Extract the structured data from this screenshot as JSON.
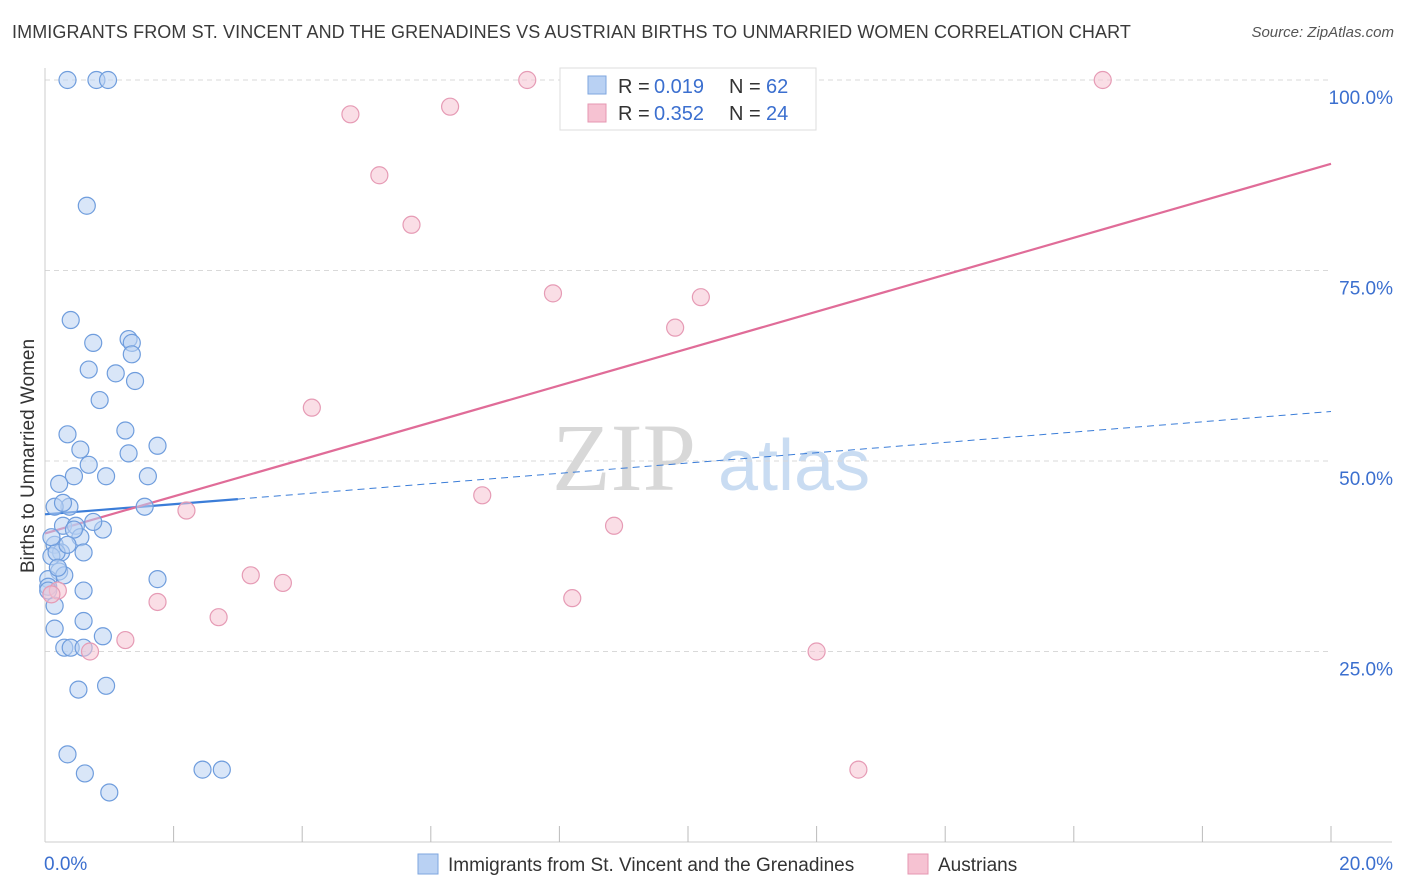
{
  "title": "IMMIGRANTS FROM ST. VINCENT AND THE GRENADINES VS AUSTRIAN BIRTHS TO UNMARRIED WOMEN CORRELATION CHART",
  "source": "Source: ZipAtlas.com",
  "colors": {
    "blue": "#3b7dd8",
    "blue_fill": "#b9d1f3",
    "pink": "#e06c98",
    "pink_fill": "#f6c2d2",
    "grid": "#d9d9d9",
    "accent_text": "#3b6fcf"
  },
  "watermark": {
    "zip": "ZIP",
    "atlas": "atlas"
  },
  "stats": {
    "rows": [
      {
        "r_label": "R = ",
        "r_value": "0.019",
        "n_label": "N = ",
        "n_value": "62",
        "series": "blue"
      },
      {
        "r_label": "R = ",
        "r_value": "0.352",
        "n_label": "N = ",
        "n_value": "24",
        "series": "pink"
      }
    ]
  },
  "chart_data": {
    "type": "scatter",
    "xlabel": "",
    "ylabel": "Births to Unmarried Women",
    "xlim": [
      0,
      20
    ],
    "ylim": [
      0,
      100
    ],
    "x_tick_labels": [
      {
        "value": 0,
        "label": "0.0%"
      },
      {
        "value": 20,
        "label": "20.0%"
      }
    ],
    "y_tick_labels": [
      {
        "value": 25,
        "label": "25.0%"
      },
      {
        "value": 50,
        "label": "50.0%"
      },
      {
        "value": 75,
        "label": "75.0%"
      },
      {
        "value": 100,
        "label": "100.0%"
      }
    ],
    "y_gridlines": [
      25,
      50,
      75,
      100
    ],
    "x_minor_ticks": [
      2,
      4,
      6,
      8,
      10,
      12,
      14,
      16,
      18,
      20
    ],
    "legend": [
      {
        "name": "Immigrants from St. Vincent and the Grenadines",
        "series": "blue"
      },
      {
        "name": "Austrians",
        "series": "pink"
      }
    ],
    "series": [
      {
        "name": "Immigrants from St. Vincent and the Grenadines",
        "color": "blue",
        "points": [
          [
            0.35,
            100
          ],
          [
            0.8,
            100
          ],
          [
            0.98,
            100
          ],
          [
            0.65,
            83.5
          ],
          [
            0.4,
            68.5
          ],
          [
            0.75,
            65.5
          ],
          [
            1.3,
            66
          ],
          [
            1.35,
            65.5
          ],
          [
            1.35,
            64
          ],
          [
            0.68,
            62
          ],
          [
            1.1,
            61.5
          ],
          [
            1.4,
            60.5
          ],
          [
            0.85,
            58
          ],
          [
            1.25,
            54
          ],
          [
            0.35,
            53.5
          ],
          [
            0.55,
            51.5
          ],
          [
            1.3,
            51
          ],
          [
            1.75,
            52
          ],
          [
            0.68,
            49.5
          ],
          [
            0.45,
            48
          ],
          [
            0.95,
            48
          ],
          [
            1.6,
            48
          ],
          [
            0.22,
            47
          ],
          [
            0.38,
            44
          ],
          [
            0.15,
            44
          ],
          [
            1.55,
            44
          ],
          [
            0.28,
            41.5
          ],
          [
            0.48,
            41.5
          ],
          [
            0.9,
            41
          ],
          [
            0.55,
            40
          ],
          [
            0.45,
            41
          ],
          [
            0.15,
            39
          ],
          [
            0.25,
            38
          ],
          [
            0.1,
            37.5
          ],
          [
            0.18,
            38
          ],
          [
            0.22,
            35.5
          ],
          [
            0.3,
            35
          ],
          [
            0.05,
            34.5
          ],
          [
            0.05,
            33.5
          ],
          [
            0.05,
            33
          ],
          [
            0.6,
            33
          ],
          [
            1.75,
            34.5
          ],
          [
            0.15,
            31
          ],
          [
            0.6,
            29
          ],
          [
            0.15,
            28
          ],
          [
            0.9,
            27
          ],
          [
            0.3,
            25.5
          ],
          [
            0.4,
            25.5
          ],
          [
            0.6,
            25.5
          ],
          [
            0.95,
            20.5
          ],
          [
            0.52,
            20
          ],
          [
            0.35,
            11.5
          ],
          [
            0.62,
            9
          ],
          [
            2.45,
            9.5
          ],
          [
            2.75,
            9.5
          ],
          [
            1.0,
            6.5
          ],
          [
            0.2,
            36
          ],
          [
            0.35,
            39
          ],
          [
            0.75,
            42
          ],
          [
            0.1,
            40
          ],
          [
            0.6,
            38
          ],
          [
            0.28,
            44.5
          ]
        ]
      },
      {
        "name": "Austrians",
        "color": "pink",
        "points": [
          [
            7.5,
            100
          ],
          [
            16.45,
            100
          ],
          [
            6.3,
            96.5
          ],
          [
            4.75,
            95.5
          ],
          [
            5.2,
            87.5
          ],
          [
            5.7,
            81
          ],
          [
            7.9,
            72
          ],
          [
            10.2,
            71.5
          ],
          [
            9.8,
            67.5
          ],
          [
            4.15,
            57
          ],
          [
            6.8,
            45.5
          ],
          [
            2.2,
            43.5
          ],
          [
            8.85,
            41.5
          ],
          [
            3.2,
            35
          ],
          [
            3.7,
            34
          ],
          [
            1.75,
            31.5
          ],
          [
            8.2,
            32
          ],
          [
            2.7,
            29.5
          ],
          [
            1.25,
            26.5
          ],
          [
            0.7,
            25
          ],
          [
            12.0,
            25
          ],
          [
            12.65,
            9.5
          ],
          [
            0.2,
            33
          ],
          [
            0.1,
            32.5
          ]
        ]
      }
    ],
    "trend_lines": [
      {
        "series": "blue",
        "style": "solid",
        "from": [
          0,
          43
        ],
        "to": [
          3,
          45
        ]
      },
      {
        "series": "blue",
        "style": "dashed",
        "from": [
          3,
          45
        ],
        "to": [
          20,
          56.5
        ]
      },
      {
        "series": "pink",
        "style": "solid",
        "from": [
          0,
          40.5
        ],
        "to": [
          20,
          89
        ]
      }
    ]
  }
}
